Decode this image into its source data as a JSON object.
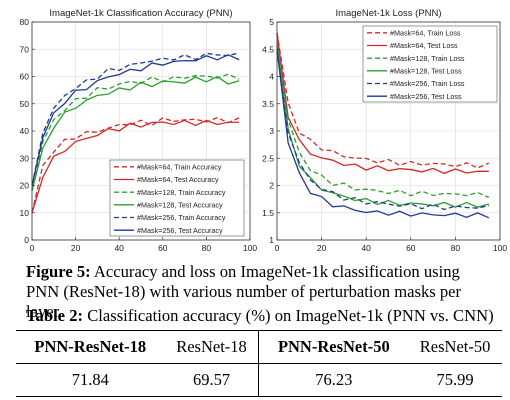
{
  "chart_data": [
    {
      "type": "line",
      "title": "ImageNet-1k Classification Accuracy (PNN)",
      "xlim": [
        0,
        100
      ],
      "ylim": [
        0,
        80
      ],
      "xticks": [
        0,
        20,
        40,
        60,
        80,
        100
      ],
      "yticks": [
        0,
        10,
        20,
        30,
        40,
        50,
        60,
        70,
        80
      ],
      "grid": true,
      "legend_position": "bottom-right",
      "x": [
        0,
        5,
        10,
        15,
        20,
        25,
        30,
        35,
        40,
        45,
        50,
        55,
        60,
        65,
        70,
        75,
        80,
        85,
        90,
        95
      ],
      "series": [
        {
          "name": "#Mask=64, Train Accuracy",
          "color": "#d62728",
          "dash": "dashed",
          "values": [
            10,
            27,
            33,
            36,
            38,
            39,
            40,
            41,
            42,
            43,
            43,
            43,
            44,
            44,
            44,
            44,
            44,
            44,
            44,
            44
          ]
        },
        {
          "name": "#Mask=64, Test Accuracy",
          "color": "#d62728",
          "dash": "solid",
          "values": [
            10,
            24,
            30,
            33,
            36,
            37,
            39,
            40,
            41,
            42,
            42,
            43,
            43,
            43,
            43,
            43,
            43,
            43,
            43,
            43
          ]
        },
        {
          "name": "#Mask=128, Train Accuracy",
          "color": "#2ca02c",
          "dash": "dashed",
          "values": [
            18,
            36,
            44,
            48,
            51,
            53,
            55,
            56,
            57,
            58,
            58,
            59,
            59,
            59,
            60,
            60,
            60,
            60,
            60,
            60
          ]
        },
        {
          "name": "#Mask=128, Test Accuracy",
          "color": "#2ca02c",
          "dash": "solid",
          "values": [
            18,
            33,
            42,
            46,
            49,
            51,
            53,
            54,
            55,
            56,
            57,
            57,
            58,
            58,
            58,
            59,
            59,
            59,
            58,
            58
          ]
        },
        {
          "name": "#Mask=256, Train Accuracy",
          "color": "#1f3a93",
          "dash": "dashed",
          "values": [
            20,
            40,
            48,
            53,
            56,
            58,
            60,
            62,
            63,
            64,
            65,
            66,
            66,
            67,
            67,
            67,
            68,
            68,
            68,
            68
          ]
        },
        {
          "name": "#Mask=256, Test Accuracy",
          "color": "#1f3a93",
          "dash": "solid",
          "values": [
            20,
            38,
            46,
            51,
            54,
            56,
            58,
            60,
            61,
            62,
            63,
            64,
            65,
            65,
            66,
            66,
            67,
            67,
            67,
            67
          ]
        }
      ]
    },
    {
      "type": "line",
      "title": "ImageNet-1k Loss (PNN)",
      "xlim": [
        0,
        100
      ],
      "ylim": [
        1,
        5
      ],
      "xticks": [
        0,
        20,
        40,
        60,
        80,
        100
      ],
      "yticks": [
        1,
        1.5,
        2,
        2.5,
        3,
        3.5,
        4,
        4.5,
        5
      ],
      "grid": true,
      "legend_position": "top-right",
      "x": [
        0,
        5,
        10,
        15,
        20,
        25,
        30,
        35,
        40,
        45,
        50,
        55,
        60,
        65,
        70,
        75,
        80,
        85,
        90,
        95
      ],
      "series": [
        {
          "name": "#Mask=64, Train Loss",
          "color": "#d62728",
          "dash": "dashed",
          "values": [
            4.8,
            3.5,
            3.0,
            2.8,
            2.7,
            2.6,
            2.55,
            2.5,
            2.48,
            2.45,
            2.43,
            2.42,
            2.4,
            2.4,
            2.4,
            2.38,
            2.38,
            2.37,
            2.37,
            2.37
          ]
        },
        {
          "name": "#Mask=64, Test Loss",
          "color": "#d62728",
          "dash": "solid",
          "values": [
            4.8,
            3.3,
            2.8,
            2.6,
            2.5,
            2.45,
            2.4,
            2.35,
            2.33,
            2.32,
            2.3,
            2.3,
            2.28,
            2.28,
            2.27,
            2.27,
            2.26,
            2.26,
            2.25,
            2.25
          ]
        },
        {
          "name": "#Mask=128, Train Loss",
          "color": "#2ca02c",
          "dash": "dashed",
          "values": [
            4.6,
            3.2,
            2.6,
            2.3,
            2.15,
            2.05,
            2.0,
            1.95,
            1.92,
            1.9,
            1.88,
            1.87,
            1.86,
            1.85,
            1.85,
            1.84,
            1.84,
            1.84,
            1.83,
            1.83
          ]
        },
        {
          "name": "#Mask=128, Test Loss",
          "color": "#2ca02c",
          "dash": "solid",
          "values": [
            4.6,
            3.0,
            2.4,
            2.1,
            1.95,
            1.85,
            1.8,
            1.75,
            1.72,
            1.7,
            1.68,
            1.67,
            1.66,
            1.66,
            1.65,
            1.65,
            1.65,
            1.64,
            1.64,
            1.64
          ]
        },
        {
          "name": "#Mask=256, Train Loss",
          "color": "#1f3a93",
          "dash": "dashed",
          "values": [
            4.5,
            3.0,
            2.4,
            2.1,
            1.95,
            1.85,
            1.78,
            1.73,
            1.7,
            1.68,
            1.66,
            1.64,
            1.63,
            1.62,
            1.61,
            1.6,
            1.6,
            1.6,
            1.6,
            1.6
          ]
        },
        {
          "name": "#Mask=256, Test Loss",
          "color": "#1f3a93",
          "dash": "solid",
          "values": [
            4.5,
            2.8,
            2.2,
            1.9,
            1.75,
            1.65,
            1.6,
            1.55,
            1.52,
            1.5,
            1.5,
            1.48,
            1.48,
            1.47,
            1.47,
            1.46,
            1.46,
            1.46,
            1.45,
            1.45
          ]
        }
      ]
    }
  ],
  "figure_caption": {
    "label": "Figure 5:",
    "text": "Accuracy and loss on ImageNet-1k classification using PNN (ResNet-18) with various number of perturbation masks per layer."
  },
  "table_caption": {
    "label": "Table 2:",
    "text": "Classification accuracy (%) on ImageNet-1k (PNN vs. CNN)"
  },
  "table": {
    "headers": [
      "PNN-ResNet-18",
      "ResNet-18",
      "PNN-ResNet-50",
      "ResNet-50"
    ],
    "values": [
      "71.84",
      "69.57",
      "76.23",
      "75.99"
    ]
  }
}
